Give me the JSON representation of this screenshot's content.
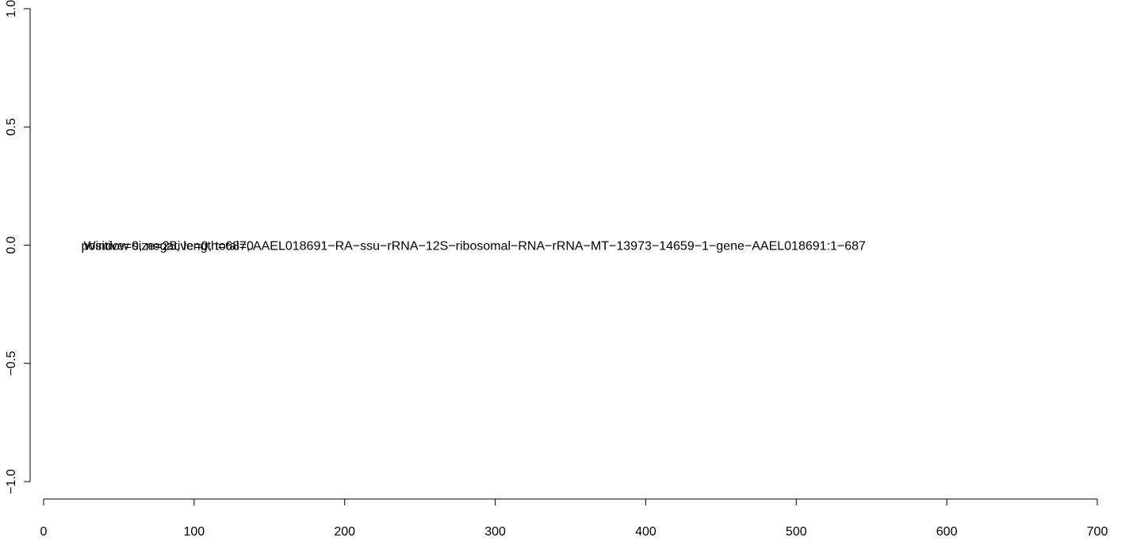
{
  "chart_data": {
    "type": "scatter",
    "title": "",
    "xlabel": "",
    "ylabel": "",
    "xlim": [
      0,
      700
    ],
    "ylim": [
      -1.0,
      1.0
    ],
    "x_ticks": [
      0,
      100,
      200,
      300,
      400,
      500,
      600,
      700
    ],
    "x_tick_labels": [
      "0",
      "100",
      "200",
      "300",
      "400",
      "500",
      "600",
      "700"
    ],
    "y_ticks": [
      -1.0,
      -0.5,
      0.0,
      0.5,
      1.0
    ],
    "y_tick_labels": [
      "−1.0",
      "−0.5",
      "0.0",
      "0.5",
      "1.0"
    ],
    "grid": false,
    "series": [],
    "annotations": [
      {
        "text": "positive=0, negative=0, total=0",
        "x": 25,
        "y": 0.0
      },
      {
        "text": "Window size=25, length=687, AAEL018691−RA−ssu−rRNA−12S−ribosomal−RNA−rRNA−MT−13973−14659−1−gene−AAEL018691:1−687",
        "x": 25,
        "y": 0.0
      }
    ]
  }
}
